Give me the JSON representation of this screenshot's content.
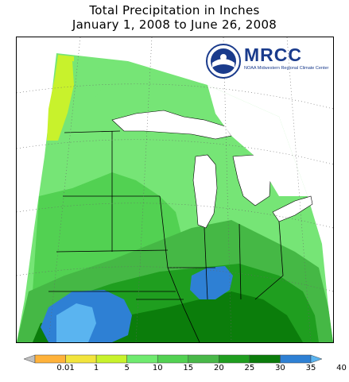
{
  "header": {
    "title_line1": "Total Precipitation in Inches",
    "title_line2": "January 1, 2008 to June 26, 2008"
  },
  "logo": {
    "wordmark": "MRCC",
    "subtitle": "NOAA Midwestern Regional Climate Center",
    "emblem_icon": "noaa-emblem-icon",
    "color": "#1a3b8c"
  },
  "legend": {
    "labels": [
      "0.01",
      "1",
      "5",
      "10",
      "15",
      "20",
      "25",
      "30",
      "35",
      "40"
    ],
    "colors": [
      "#c0c0c0",
      "#ffb23a",
      "#f2e43c",
      "#c8f22c",
      "#6fea6f",
      "#52d152",
      "#48b848",
      "#1f9e1f",
      "#0b7d0b",
      "#2e80d4",
      "#5ab4f0"
    ]
  },
  "map": {
    "region": "Midwest",
    "palette": {
      "very_light_green": "#76e576",
      "light_green": "#5cd65c",
      "mid_green": "#45b845",
      "green": "#1f9e1f",
      "dark_green": "#0b7d0b",
      "blue": "#2e80d4",
      "light_blue": "#5ab4f0",
      "yellow_green": "#c8f22c",
      "lake": "#ffffff"
    }
  }
}
